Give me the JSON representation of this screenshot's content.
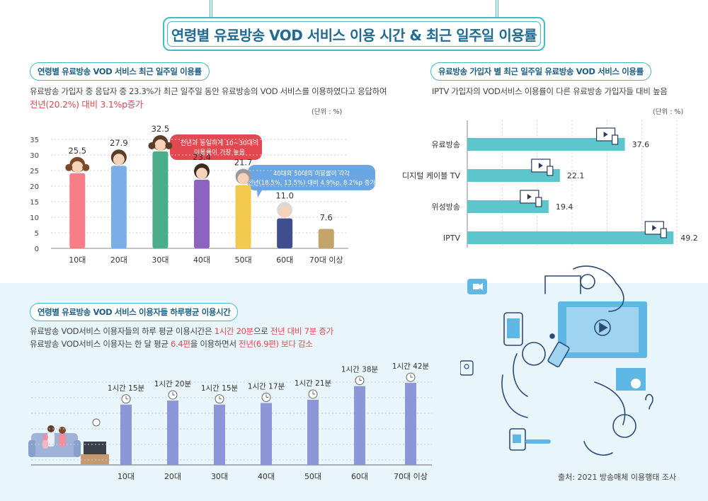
{
  "title": "연령별 유료방송 VOD 서비스 이용 시간 & 최근 일주일 이용률",
  "section1": {
    "tag": "연령별 유료방송 VOD 서비스 최근 일주일 이용률",
    "desc1": "유료방송 가입자 중 응답자 중 23.3%가 최근 일주일 동안 유료방송의 VOD 서비스를 이용하였다고 응답하여",
    "desc2": "전년(20.2%) 대비 3.1%p증가",
    "unit": "(단위 : %)",
    "callout1": [
      "전년과 동일하게 10~30대의",
      "이용률이 가장 높음"
    ],
    "callout2": [
      "40대와 50대의 이용률이 각각",
      "전년(18.5%, 13.5%) 대비 4.9%p, 8.2%p 증가"
    ]
  },
  "section2": {
    "tag": "유료방송 가입자 별 최근 일주일 유료방송 VOD 서비스 이용률",
    "desc": "IPTV 가입자의 VOD서비스 이용률이 다른 유료방송 가입자들 대비 높음",
    "unit": "(단위 : %)"
  },
  "section3": {
    "tag": "연령별 유료방송 VOD 서비스 이용자들 하루평균 이용시간",
    "desc1_a": "유료방송 VOD서비스 이용자들의 하루 평균 이용시간은 ",
    "desc1_b": "1시간 20분",
    "desc1_c": "으로 ",
    "desc1_d": "전년 대비 7분 증가",
    "desc2_a": "유료방송 VOD서비스 이용자는 한 달 평균 ",
    "desc2_b": "6.4편",
    "desc2_c": "을 이용하면서 ",
    "desc2_d": "전년(6.9편) 보다 감소"
  },
  "source": "출처: 2021 방송매체 이용행태 조사",
  "colors": {
    "teal": "#41bcc4",
    "navy": "#1f5f84",
    "red": "#e3474f",
    "barBlue": "#8d96d6",
    "hbar": "#5dc6cc"
  },
  "chart_data": [
    {
      "type": "bar",
      "categories": [
        "10대",
        "20대",
        "30대",
        "40대",
        "50대",
        "60대",
        "70대 이상"
      ],
      "values": [
        25.5,
        27.9,
        32.5,
        23.4,
        21.7,
        11.0,
        7.6
      ],
      "value_labels": [
        "25.5",
        "27.9",
        "32.5",
        "23.4",
        "21.7",
        "11.0",
        "7.6"
      ],
      "colors": [
        "#f77e86",
        "#7aaee8",
        "#4bae8a",
        "#8e63bf",
        "#f2c94c",
        "#3f4f8e",
        "#c4a46a"
      ],
      "yticks": [
        "0",
        "5",
        "10",
        "15",
        "20",
        "25",
        "30",
        "35"
      ],
      "ylim": [
        0,
        35
      ],
      "grid": true
    },
    {
      "type": "bar",
      "orientation": "horizontal",
      "categories": [
        "유료방송",
        "디지털 케이블 TV",
        "위성방송",
        "IPTV"
      ],
      "values": [
        37.6,
        22.1,
        19.4,
        49.2
      ],
      "value_labels": [
        "37.6",
        "22.1",
        "19.4",
        "49.2"
      ],
      "xlim": [
        0,
        50
      ],
      "grid": true
    },
    {
      "type": "bar",
      "categories": [
        "10대",
        "20대",
        "30대",
        "40대",
        "50대",
        "60대",
        "70대 이상"
      ],
      "values": [
        75,
        80,
        75,
        77,
        81,
        98,
        102
      ],
      "value_labels": [
        "1시간 15분",
        "1시간 20분",
        "1시간 15분",
        "1시간 17분",
        "1시간 21분",
        "1시간 38분",
        "1시간 42분"
      ],
      "grid": true
    }
  ]
}
